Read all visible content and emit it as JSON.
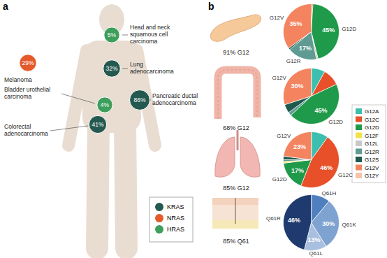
{
  "chart_data": [
    {
      "type": "pie",
      "title": "91% G12",
      "categories": [
        "G12C",
        "G12D",
        "G12L",
        "G12R",
        "G12S",
        "G12V"
      ],
      "values": [
        1,
        45,
        1,
        17,
        1,
        35
      ],
      "colors": [
        "#e8502a",
        "#1e9a4a",
        "#c8c8c8",
        "#5f9b93",
        "#1f5a4e",
        "#f4845f"
      ],
      "value_labels": [
        null,
        "45%",
        null,
        "17%",
        null,
        "35%"
      ],
      "annotations": [
        "G12V",
        "G12R",
        "G12D"
      ],
      "data_labels": true
    },
    {
      "type": "pie",
      "title": "68% G12",
      "categories": [
        "G12A",
        "G12C",
        "G12D",
        "G12R",
        "G12S",
        "G12V"
      ],
      "values": [
        8,
        10,
        45,
        2,
        5,
        30
      ],
      "colors": [
        "#3cbfae",
        "#e8502a",
        "#1e9a4a",
        "#5f9b93",
        "#1f5a4e",
        "#f4845f"
      ],
      "value_labels": [
        null,
        null,
        "45%",
        null,
        null,
        "30%"
      ],
      "annotations": [
        "G12V",
        "G12D"
      ],
      "data_labels": true
    },
    {
      "type": "pie",
      "title": "85% G12",
      "categories": [
        "G12A",
        "G12C",
        "G12D",
        "G12F",
        "G12R",
        "G12S",
        "G12V"
      ],
      "values": [
        10,
        46,
        17,
        1,
        1,
        2,
        23
      ],
      "colors": [
        "#3cbfae",
        "#e8502a",
        "#1e9a4a",
        "#f2e24a",
        "#5f9b93",
        "#1f5a4e",
        "#f4845f"
      ],
      "value_labels": [
        null,
        "46%",
        "17%",
        null,
        null,
        null,
        "23%"
      ],
      "annotations": [
        "G12V",
        "G12C",
        "G12D"
      ],
      "data_labels": true
    },
    {
      "type": "pie",
      "title": "85% Q61",
      "categories": [
        "Q61H",
        "Q61K",
        "Q61L",
        "Q61R"
      ],
      "values": [
        11,
        30,
        13,
        46
      ],
      "colors": [
        "#4f7fbf",
        "#7fa3d0",
        "#a9bfe0",
        "#1f3a6e"
      ],
      "value_labels": [
        null,
        "30%",
        "13%",
        "46%"
      ],
      "annotations": [
        "Q61R",
        "Q61H",
        "Q61K",
        "Q61L"
      ],
      "data_labels": true
    }
  ],
  "diagram": {
    "panel_a": {
      "label": "a",
      "sites": [
        {
          "label": [
            "Head and neck",
            "squamous cell",
            "carcinoma"
          ],
          "value": 5,
          "value_label": "5%",
          "gene": "HRAS"
        },
        {
          "label": [
            "Lung",
            "adenocarcinoma"
          ],
          "value": 32,
          "value_label": "32%",
          "gene": "KRAS"
        },
        {
          "label": [
            "Melanoma"
          ],
          "value": 29,
          "value_label": "29%",
          "gene": "NRAS"
        },
        {
          "label": [
            "Bladder urothelial",
            "carcinoma"
          ],
          "value": 4,
          "value_label": "4%",
          "gene": "HRAS"
        },
        {
          "label": [
            "Pancreatic ductal",
            "adenocarcinoma"
          ],
          "value": 86,
          "value_label": "86%",
          "gene": "KRAS"
        },
        {
          "label": [
            "Colorectal",
            "adenocarcinoma"
          ],
          "value": 41,
          "value_label": "41%",
          "gene": "KRAS"
        }
      ],
      "legend": [
        {
          "name": "KRAS",
          "color": "#24594f"
        },
        {
          "name": "NRAS",
          "color": "#e45a2b"
        },
        {
          "name": "HRAS",
          "color": "#3e9e5c"
        }
      ]
    },
    "panel_b": {
      "label": "b",
      "legend": [
        {
          "name": "G12A",
          "color": "#3cbfae"
        },
        {
          "name": "G12C",
          "color": "#e8502a"
        },
        {
          "name": "G12D",
          "color": "#1e9a4a"
        },
        {
          "name": "G12F",
          "color": "#f2e24a"
        },
        {
          "name": "G12L",
          "color": "#c8c8c8"
        },
        {
          "name": "G12R",
          "color": "#5f9b93"
        },
        {
          "name": "G12S",
          "color": "#1f5a4e"
        },
        {
          "name": "G12V",
          "color": "#f4845f"
        },
        {
          "name": "G12Y",
          "color": "#f7c3a8"
        }
      ]
    }
  }
}
